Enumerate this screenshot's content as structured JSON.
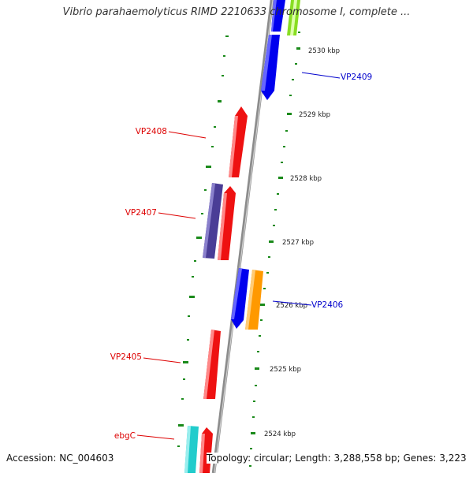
{
  "title": "Vibrio parahaemolyticus RIMD 2210633 chromosome I, complete ...",
  "footer": {
    "accession": "Accession: NC_004603",
    "summary": "Topology: circular; Length: 3,288,558 bp; Genes: 3,223"
  },
  "scale_labels": [
    "2530 kbp",
    "2529 kbp",
    "2528 kbp",
    "2527 kbp",
    "2526 kbp",
    "2525 kbp",
    "2524 kbp"
  ],
  "gene_labels": [
    {
      "name": "VP2409",
      "color": "#0000cc"
    },
    {
      "name": "VP2408",
      "color": "#dd0000"
    },
    {
      "name": "VP2407",
      "color": "#dd0000"
    },
    {
      "name": "VP2406",
      "color": "#0000cc"
    },
    {
      "name": "VP2405",
      "color": "#dd0000"
    },
    {
      "name": "ebgC",
      "color": "#dd0000"
    }
  ],
  "colors": {
    "backbone": "#8c8c8c",
    "tick": "#1a8a1a",
    "red_gene": "#ee1111",
    "blue_gene": "#0000ee",
    "purple_gene": "#4a3d96",
    "orange_gene": "#ff9900",
    "cyan_gene": "#22cccc",
    "green_gene": "#88dd22"
  }
}
